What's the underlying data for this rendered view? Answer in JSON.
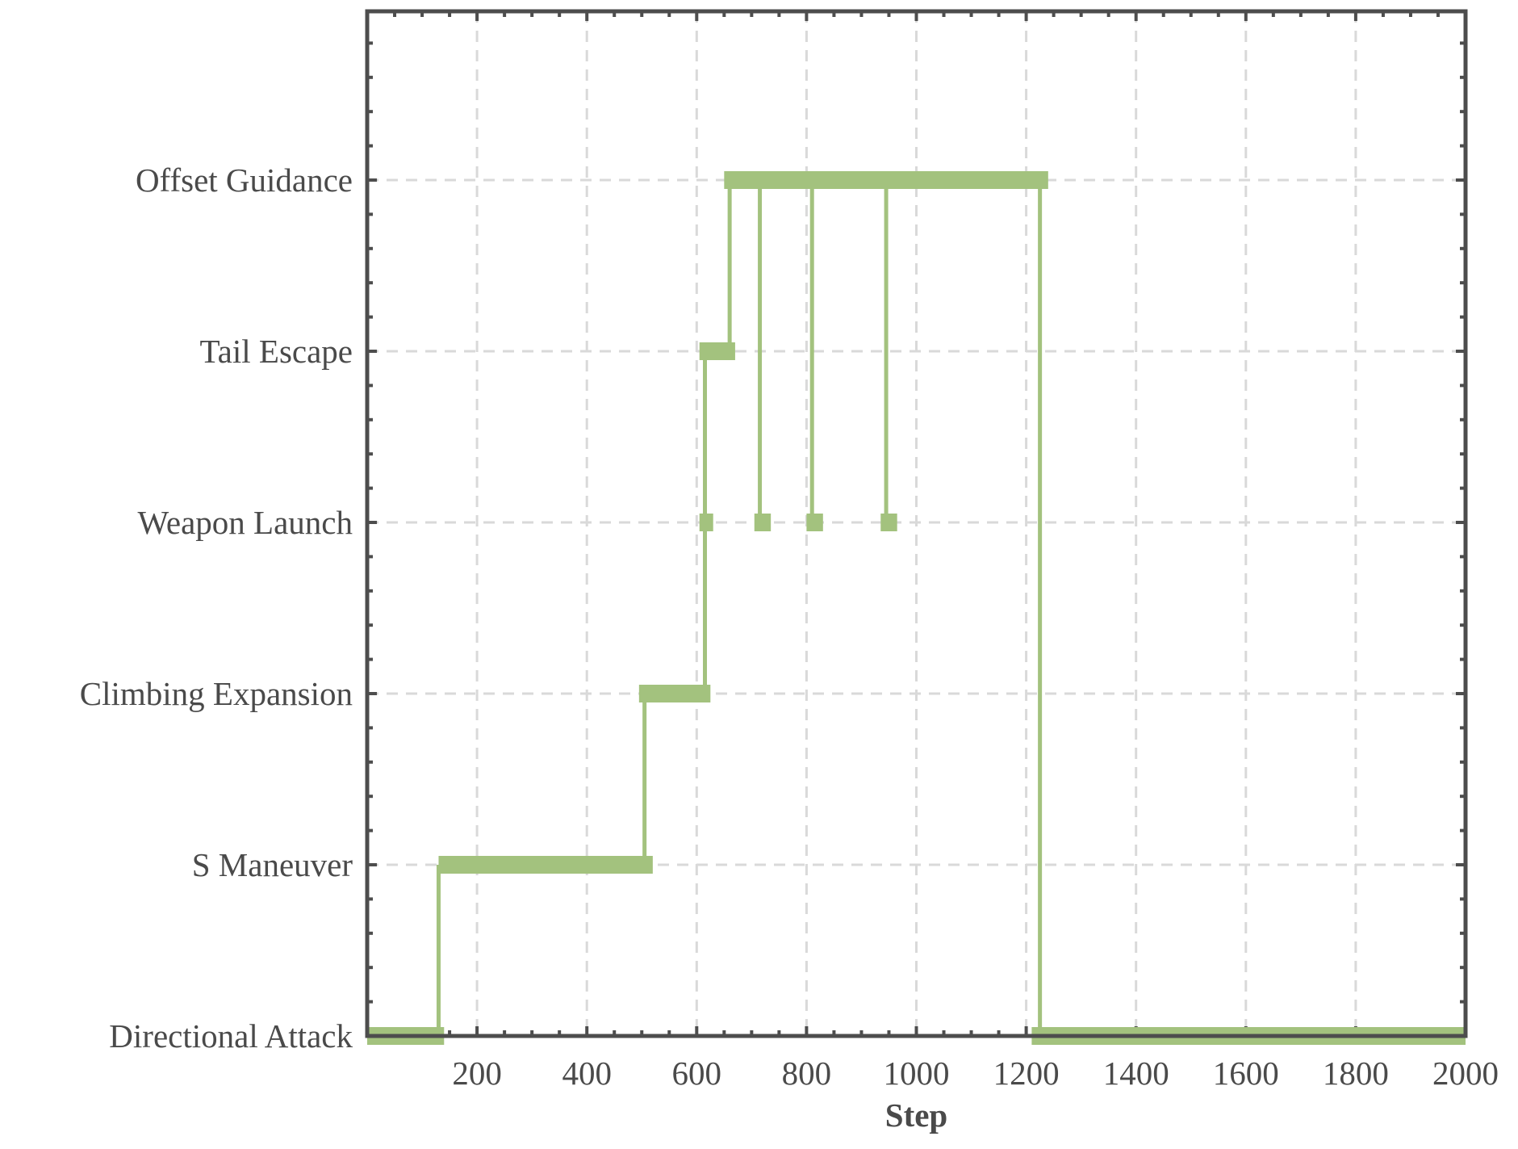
{
  "chart_data": {
    "type": "line",
    "subtype": "step",
    "title": "",
    "xlabel": "Step",
    "ylabel": "",
    "xlim": [
      0,
      2000
    ],
    "xticks": [
      200,
      400,
      600,
      800,
      1000,
      1200,
      1400,
      1600,
      1800,
      2000
    ],
    "xtick_labels": [
      "200",
      "400",
      "600",
      "800",
      "1000",
      "1200",
      "1400",
      "1600",
      "1800",
      "2000"
    ],
    "categories": [
      "Directional Attack",
      "S Maneuver",
      "Climbing Expansion",
      "Weapon Launch",
      "Tail Escape",
      "Offset Guidance"
    ],
    "grid": true,
    "legend": "none",
    "color": "#a3c27e",
    "segments": [
      {
        "state": "Directional Attack",
        "x_start": 0,
        "x_end": 140
      },
      {
        "state": "S Maneuver",
        "x_start": 130,
        "x_end": 520
      },
      {
        "state": "Climbing Expansion",
        "x_start": 495,
        "x_end": 625
      },
      {
        "state": "Weapon Launch",
        "x_start": 605,
        "x_end": 630
      },
      {
        "state": "Tail Escape",
        "x_start": 605,
        "x_end": 670
      },
      {
        "state": "Offset Guidance",
        "x_start": 650,
        "x_end": 1240
      },
      {
        "state": "Weapon Launch",
        "x_start": 705,
        "x_end": 735
      },
      {
        "state": "Weapon Launch",
        "x_start": 800,
        "x_end": 830
      },
      {
        "state": "Weapon Launch",
        "x_start": 935,
        "x_end": 965
      },
      {
        "state": "Directional Attack",
        "x_start": 1210,
        "x_end": 2000
      }
    ],
    "transitions": [
      {
        "x": 130,
        "from": "Directional Attack",
        "to": "S Maneuver"
      },
      {
        "x": 505,
        "from": "S Maneuver",
        "to": "Climbing Expansion"
      },
      {
        "x": 615,
        "from": "Climbing Expansion",
        "to": "Tail Escape"
      },
      {
        "x": 660,
        "from": "Tail Escape",
        "to": "Offset Guidance"
      },
      {
        "x": 715,
        "from": "Offset Guidance",
        "to": "Weapon Launch"
      },
      {
        "x": 810,
        "from": "Offset Guidance",
        "to": "Weapon Launch"
      },
      {
        "x": 945,
        "from": "Offset Guidance",
        "to": "Weapon Launch"
      },
      {
        "x": 1225,
        "from": "Offset Guidance",
        "to": "Directional Attack"
      }
    ]
  }
}
